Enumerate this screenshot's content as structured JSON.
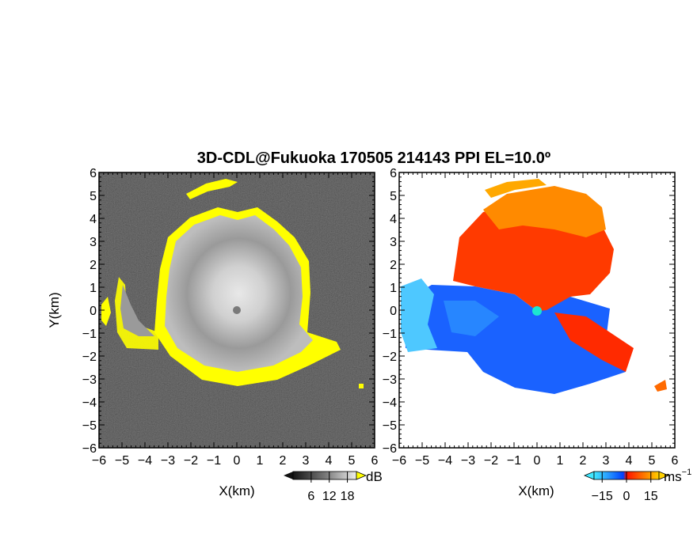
{
  "figure": {
    "title": "3D-CDL@Fukuoka 170505 214143 PPI EL=10.0º"
  },
  "chart_data": [
    {
      "type": "heatmap",
      "panel": "left",
      "quantity": "SNR",
      "xlabel": "X(km)",
      "ylabel": "Y(km)",
      "xlim": [
        -6,
        6
      ],
      "ylim": [
        -6,
        6
      ],
      "xticks": [
        "−6",
        "−5",
        "−4",
        "−3",
        "−2",
        "−1",
        "0",
        "1",
        "2",
        "3",
        "4",
        "5",
        "6"
      ],
      "yticks": [
        "6",
        "5",
        "4",
        "3",
        "2",
        "1",
        "0",
        "−1",
        "−2",
        "−3",
        "−4",
        "−5",
        "−6"
      ],
      "colorbar": {
        "unit": "dB",
        "ticks": [
          "6",
          "12",
          "18"
        ],
        "range": [
          0,
          21
        ],
        "colors": [
          "#1a1a1a",
          "#e6e6e6"
        ],
        "high_color": "#ffff00"
      },
      "radar_site": [
        0,
        0
      ]
    },
    {
      "type": "heatmap",
      "panel": "right",
      "quantity": "Doppler velocity",
      "xlabel": "X(km)",
      "ylabel": "",
      "xlim": [
        -6,
        6
      ],
      "ylim": [
        -6,
        6
      ],
      "xticks": [
        "−6",
        "−5",
        "−4",
        "−3",
        "−2",
        "−1",
        "0",
        "1",
        "2",
        "3",
        "4",
        "5",
        "6"
      ],
      "yticks": [
        "6",
        "5",
        "4",
        "3",
        "2",
        "1",
        "0",
        "−1",
        "−2",
        "−3",
        "−4",
        "−5",
        "−6"
      ],
      "colorbar": {
        "unit": "ms",
        "unit_exp": "−1",
        "ticks": [
          "−15",
          "0",
          "15"
        ],
        "range": [
          -20,
          20
        ],
        "colors": [
          "#40e0ff",
          "#0050ff",
          "#ff2000",
          "#ffd000"
        ]
      },
      "radar_site": [
        0,
        0
      ]
    }
  ]
}
